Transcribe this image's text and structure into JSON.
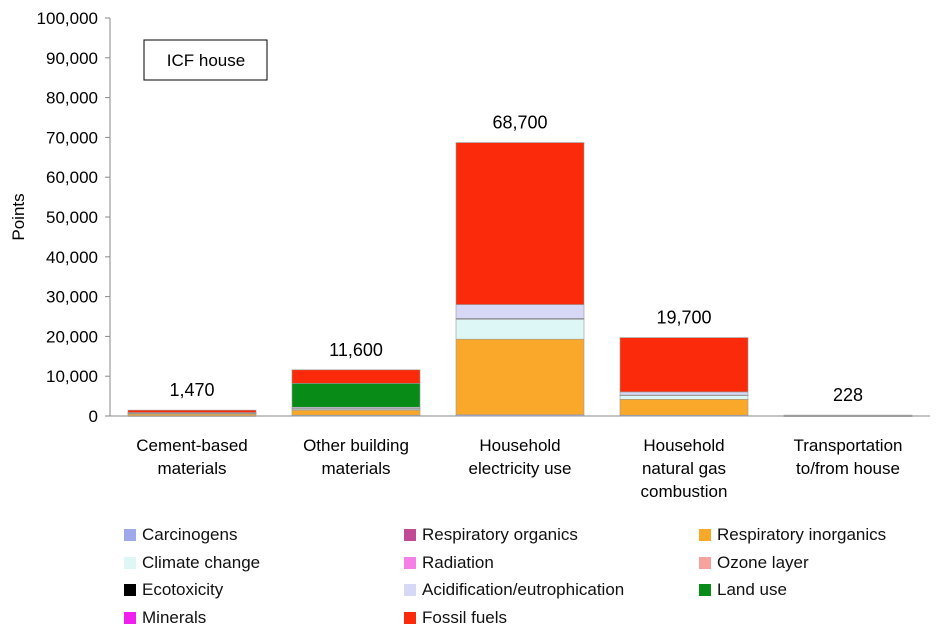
{
  "chart_data": {
    "type": "bar",
    "stacked": true,
    "annotation": "ICF house",
    "ylabel": "Points",
    "xlabel": "",
    "ylim": [
      0,
      100000
    ],
    "ytick_step": 10000,
    "ytick_labels": [
      "0",
      "10,000",
      "20,000",
      "30,000",
      "40,000",
      "50,000",
      "60,000",
      "70,000",
      "80,000",
      "90,000",
      "100,000"
    ],
    "grid": false,
    "legend_position": "bottom",
    "categories": [
      [
        "Cement-based",
        "materials"
      ],
      [
        "Other building",
        "materials"
      ],
      [
        "Household",
        "electricity use"
      ],
      [
        "Household",
        "natural gas",
        "combustion"
      ],
      [
        "Transportation",
        "to/from house"
      ]
    ],
    "totals": [
      "1,470",
      "11,600",
      "68,700",
      "19,700",
      "228"
    ],
    "series": [
      {
        "name": "Carcinogens",
        "color": "#9fa8e8",
        "values": [
          30,
          200,
          300,
          200,
          5
        ]
      },
      {
        "name": "Respiratory organics",
        "color": "#c04a96",
        "values": [
          0,
          0,
          0,
          0,
          0
        ]
      },
      {
        "name": "Respiratory inorganics",
        "color": "#f9a82a",
        "values": [
          500,
          1300,
          19000,
          4000,
          50
        ]
      },
      {
        "name": "Climate change",
        "color": "#ddf7f7",
        "values": [
          100,
          300,
          5000,
          1000,
          20
        ]
      },
      {
        "name": "Radiation",
        "color": "#f47fe6",
        "values": [
          0,
          0,
          0,
          0,
          0
        ]
      },
      {
        "name": "Ozone layer",
        "color": "#f6a29d",
        "values": [
          0,
          0,
          0,
          0,
          0
        ]
      },
      {
        "name": "Ecotoxicity",
        "color": "#000000",
        "values": [
          50,
          100,
          200,
          50,
          3
        ]
      },
      {
        "name": "Acidification/eutrophication",
        "color": "#d6d8f5",
        "values": [
          90,
          300,
          3500,
          800,
          20
        ]
      },
      {
        "name": "Land use",
        "color": "#098b17",
        "values": [
          100,
          6000,
          0,
          0,
          0
        ]
      },
      {
        "name": "Minerals",
        "color": "#f01fee",
        "values": [
          0,
          0,
          0,
          0,
          0
        ]
      },
      {
        "name": "Fossil fuels",
        "color": "#fb2a0a",
        "values": [
          600,
          3400,
          40700,
          13650,
          130
        ]
      }
    ],
    "legend_order": [
      "Carcinogens",
      "Respiratory organics",
      "Respiratory inorganics",
      "Climate change",
      "Radiation",
      "Ozone layer",
      "Ecotoxicity",
      "Acidification/eutrophication",
      "Land use",
      "Minerals",
      "Fossil fuels"
    ]
  }
}
